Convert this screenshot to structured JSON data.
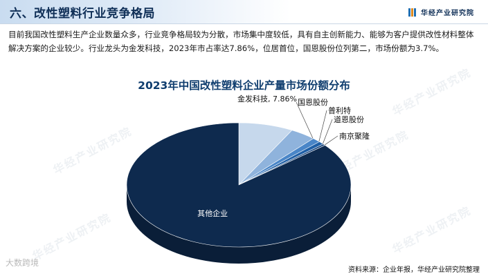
{
  "header": {
    "title": "六、改性塑料行业竞争格局",
    "brand": "华经产业研究院",
    "brand_colors": [
      "#1f6fb5",
      "#e08a1e",
      "#1f6fb5"
    ]
  },
  "paragraph": "目前我国改性塑料生产企业数量众多，行业竞争格局较为分散，市场集中度较低，具有自主创新能力、能够为客户提供改性材料整体解决方案的企业较少。行业龙头为金发科技，2023年市占率达7.86%，位居首位，国恩股份位列第二，市场份额为3.7%。",
  "watermark_text": "华经产业研究院",
  "footer": {
    "left": "大数跨境",
    "source": "资料来源：企业年报，华经产业研究院整理"
  },
  "chart_data": {
    "type": "pie",
    "title": "2023年中国改性塑料企业产量市场份额分布",
    "slices": [
      {
        "label": "金发科技, 7.86%",
        "value": 7.86,
        "color": "#c6d8ec"
      },
      {
        "label": "国恩股份",
        "value": 3.7,
        "color": "#8fb3dc"
      },
      {
        "label": "普利特",
        "value": 1.2,
        "color": "#4a86c8"
      },
      {
        "label": "道恩股份",
        "value": 0.8,
        "color": "#1f5fa6"
      },
      {
        "label": "南京聚隆",
        "value": 0.4,
        "color": "#16427a"
      },
      {
        "label": "其他企业",
        "value": 86.04,
        "color": "#0e2a4e"
      }
    ]
  }
}
